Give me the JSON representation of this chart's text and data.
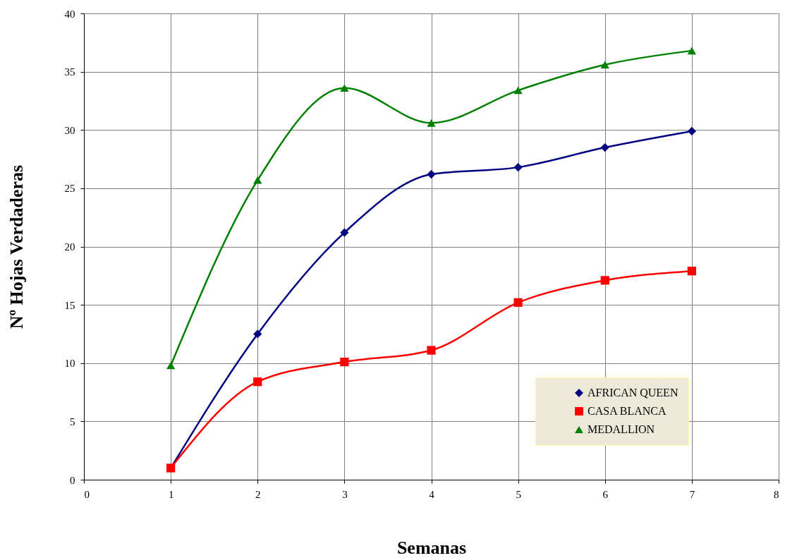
{
  "chart_data": {
    "type": "line",
    "xlabel": "Semanas",
    "ylabel": "Nº Hojas Verdaderas",
    "x": [
      1,
      2,
      3,
      4,
      5,
      6,
      7
    ],
    "series": [
      {
        "name": "AFRICAN QUEEN",
        "color": "#000080",
        "marker": "diamond",
        "values": [
          1,
          12.5,
          21.2,
          26.2,
          26.8,
          28.5,
          29.9
        ]
      },
      {
        "name": "CASA BLANCA",
        "color": "#ff0000",
        "marker": "square",
        "values": [
          1,
          8.4,
          10.1,
          11.1,
          15.2,
          17.1,
          17.9
        ]
      },
      {
        "name": "MEDALLION",
        "color": "#008000",
        "marker": "triangle",
        "values": [
          9.8,
          25.7,
          33.6,
          30.6,
          33.4,
          35.6,
          36.8
        ]
      }
    ],
    "xlim": [
      0,
      8
    ],
    "xticks": [
      0,
      1,
      2,
      3,
      4,
      5,
      6,
      7,
      8
    ],
    "ylim": [
      0,
      40
    ],
    "yticks": [
      0,
      5,
      10,
      15,
      20,
      25,
      30,
      35,
      40
    ],
    "grid": true,
    "legend": "bottom right",
    "line_style": "solid"
  }
}
